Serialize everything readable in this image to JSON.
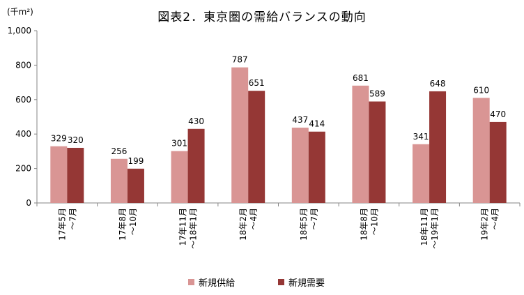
{
  "chart_data": {
    "type": "bar",
    "title": "図表2．東京圏の需給バランスの動向",
    "unit": "(千m²)",
    "ylim": [
      0,
      1000
    ],
    "yticks": [
      "0",
      "200",
      "400",
      "600",
      "800",
      "1,000"
    ],
    "categories": [
      [
        "17年5月",
        "～7月"
      ],
      [
        "17年8月",
        "～10月"
      ],
      [
        "17年11月",
        "～18年1月"
      ],
      [
        "18年2月",
        "～4月"
      ],
      [
        "18年5月",
        "～7月"
      ],
      [
        "18年8月",
        "～10月"
      ],
      [
        "18年11月",
        "～19年1月"
      ],
      [
        "19年2月",
        "～4月"
      ]
    ],
    "series": [
      {
        "name": "新規供給",
        "color": "#d99594",
        "values": [
          329,
          256,
          301,
          787,
          437,
          681,
          341,
          610
        ]
      },
      {
        "name": "新規需要",
        "color": "#953735",
        "values": [
          320,
          199,
          430,
          651,
          414,
          589,
          648,
          470
        ]
      }
    ],
    "legend": "bottom",
    "grid": false
  }
}
